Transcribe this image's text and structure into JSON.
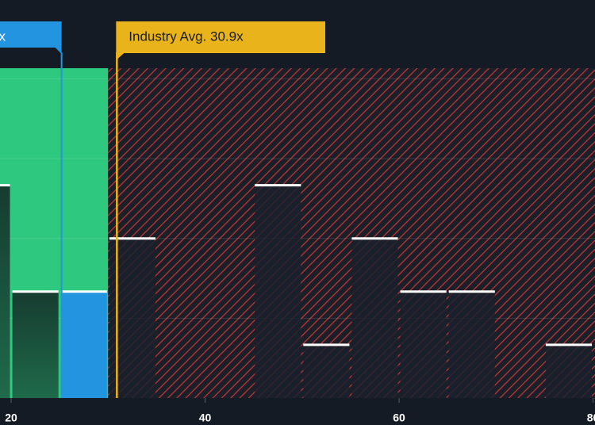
{
  "chart_data": {
    "type": "histogram",
    "bins": [
      15,
      20,
      25,
      30,
      35,
      40,
      45,
      50,
      55,
      60,
      65,
      70,
      75,
      80
    ],
    "counts": [
      4,
      2,
      2,
      3,
      0,
      0,
      4,
      1,
      3,
      2,
      2,
      0,
      1
    ],
    "bar_colors": [
      "#1f5a44",
      "#1f5a44",
      "#2394e0",
      "#1b212b",
      "#1b212b",
      "#1b212b",
      "#1b212b",
      "#1b212b",
      "#1b212b",
      "#1b212b",
      "#1b212b",
      "#1b212b",
      "#1b212b"
    ],
    "xlim": [
      18.85,
      80.2
    ],
    "xticks": [
      20,
      40,
      60,
      80
    ],
    "ylim": [
      0,
      6.2
    ],
    "grid_lines": [
      1.5,
      3,
      4.5,
      6
    ],
    "threshold": 30,
    "below_color": "#2ec97e",
    "above_color": "#d9383e",
    "company": {
      "label": "x",
      "value": 25.2,
      "color": "#2394e0"
    },
    "industry": {
      "label": "Industry Avg. 30.9x",
      "value": 30.9,
      "color": "#e9b31c"
    }
  }
}
